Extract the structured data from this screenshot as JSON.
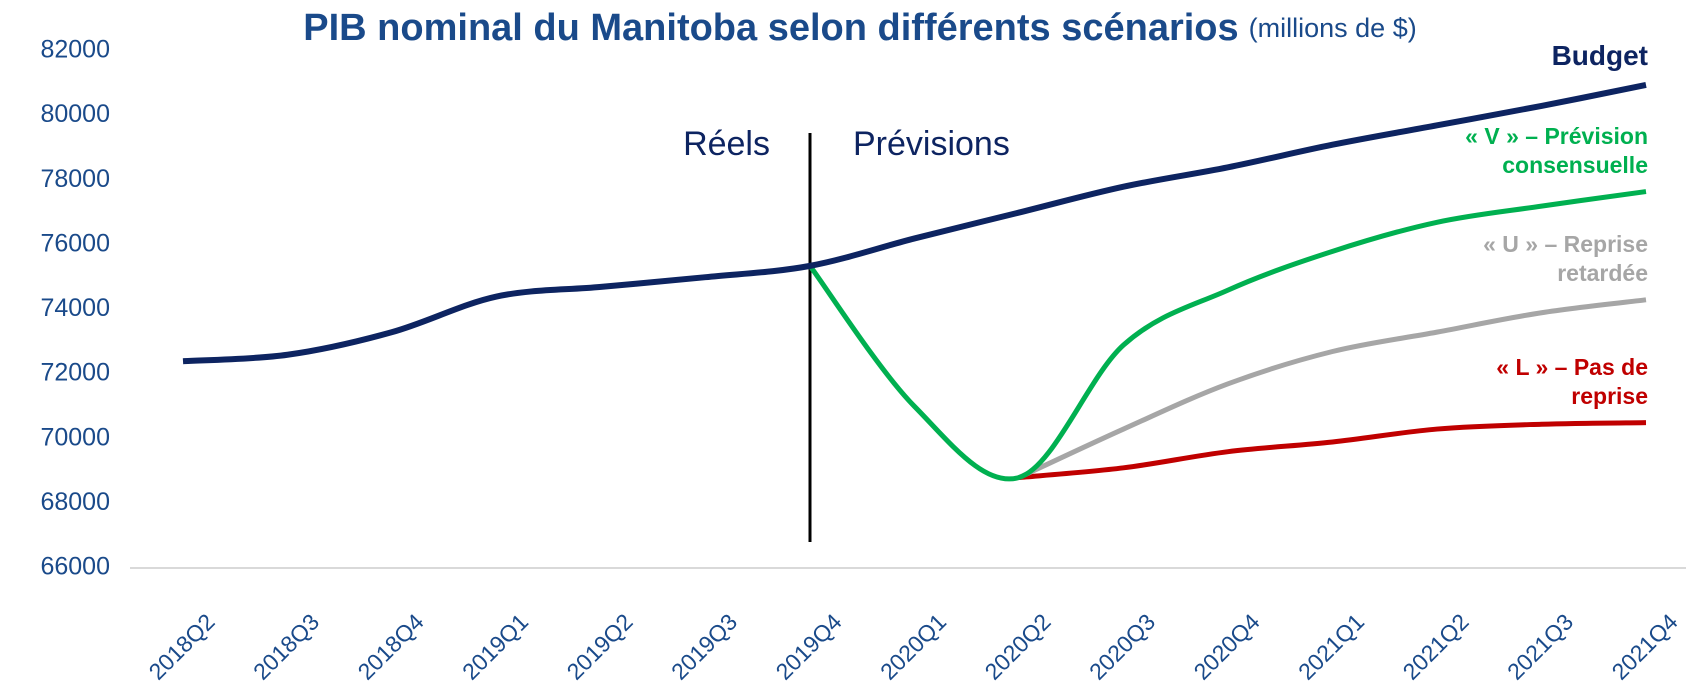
{
  "chart_data": {
    "type": "line",
    "title": "PIB nominal du Manitoba selon différents scénarios",
    "subtitle": "(millions de $)",
    "annotations": [
      "Réels",
      "Prévisions"
    ],
    "categories": [
      "2018Q2",
      "2018Q3",
      "2018Q4",
      "2019Q1",
      "2019Q2",
      "2019Q3",
      "2019Q4",
      "2020Q1",
      "2020Q2",
      "2020Q3",
      "2020Q4",
      "2021Q1",
      "2021Q2",
      "2021Q3",
      "2021Q4"
    ],
    "series": [
      {
        "name": "Budget",
        "color": "#0d2461",
        "values": [
          72400,
          72600,
          73300,
          74400,
          74700,
          75000,
          75350,
          76200,
          77000,
          77800,
          78400,
          79100,
          79700,
          80300,
          80950
        ]
      },
      {
        "name": "« V » – Prévision consensuelle",
        "color": "#00b050",
        "values": [
          null,
          null,
          null,
          null,
          null,
          null,
          75350,
          71000,
          68800,
          72900,
          74600,
          75800,
          76700,
          77200,
          77650
        ]
      },
      {
        "name": "« U » – Reprise retardée",
        "color": "#a6a6a6",
        "values": [
          null,
          null,
          null,
          null,
          null,
          null,
          null,
          null,
          68800,
          70300,
          71700,
          72700,
          73300,
          73900,
          74300
        ]
      },
      {
        "name": "« L » – Pas de reprise",
        "color": "#c00000",
        "values": [
          null,
          null,
          null,
          null,
          null,
          null,
          null,
          null,
          68800,
          69100,
          69600,
          69900,
          70300,
          70450,
          70500
        ]
      }
    ],
    "ylim": [
      66000,
      82000
    ],
    "yticks": [
      66000,
      68000,
      70000,
      72000,
      74000,
      76000,
      78000,
      80000,
      82000
    ]
  }
}
